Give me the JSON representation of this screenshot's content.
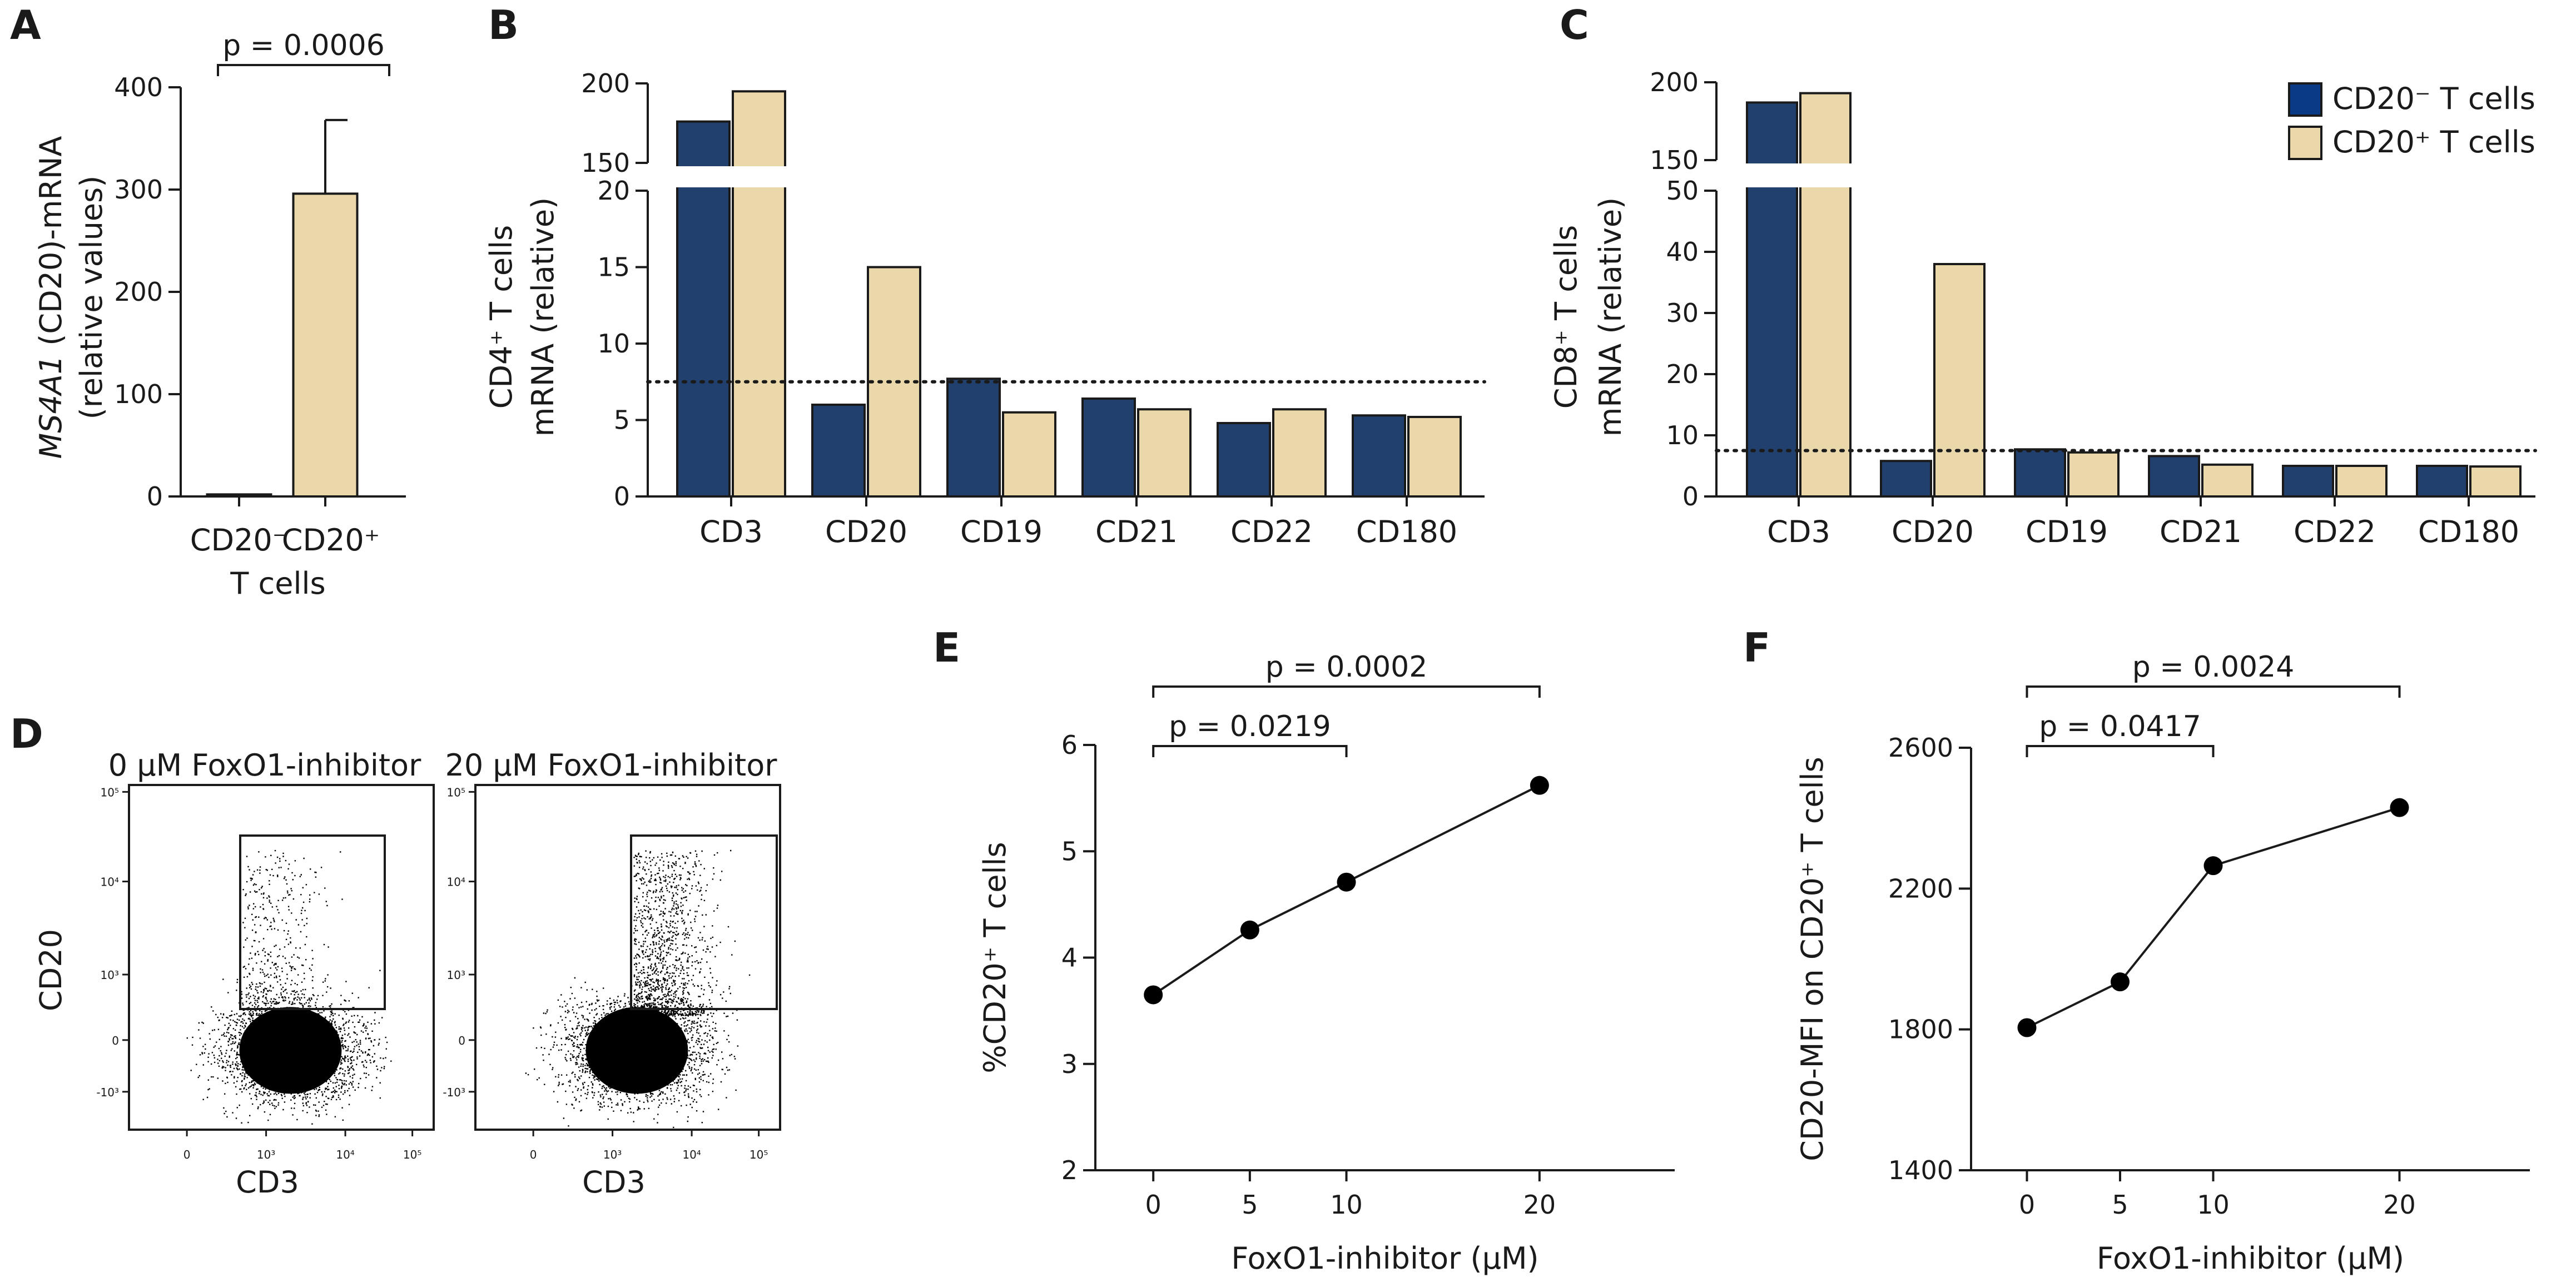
{
  "colors": {
    "cd20_neg": "#21406e",
    "cd20_pos": "#ead8ab",
    "legend_neg": "#0a3a86",
    "axis": "#1a1a1a",
    "dot": "#000000"
  },
  "chart_data": [
    {
      "panel": "A",
      "type": "bar",
      "categories": [
        "CD20⁻",
        "CD20⁺"
      ],
      "values": [
        2,
        296
      ],
      "error_upper": [
        null,
        368
      ],
      "ylabel": "MS4A1 (CD20)-mRNA (relative values)",
      "ylabel_italic_part": "MS4A1",
      "ylabel_line1_rest": " (CD20)-mRNA",
      "ylabel_line2": "(relative values)",
      "xlabel": "T cells",
      "ylim": [
        0,
        400
      ],
      "yticks": [
        0,
        100,
        200,
        300,
        400
      ],
      "annotation": "p = 0.0006"
    },
    {
      "panel": "B",
      "type": "bar",
      "categories": [
        "CD3",
        "CD20",
        "CD19",
        "CD21",
        "CD22",
        "CD180"
      ],
      "series": [
        {
          "name": "CD20⁻ T cells",
          "values": [
            176,
            6,
            7.7,
            6.4,
            4.8,
            5.3
          ]
        },
        {
          "name": "CD20⁺ T cells",
          "values": [
            195,
            15,
            5.5,
            5.7,
            5.7,
            5.2
          ]
        }
      ],
      "ylabel_line1": "CD4⁺ T cells",
      "ylabel_line2": "mRNA (relative)",
      "ylim_lower": [
        0,
        20
      ],
      "yticks_lower": [
        0,
        5,
        10,
        15,
        20
      ],
      "ylim_upper": [
        150,
        200
      ],
      "yticks_upper": [
        150,
        200
      ],
      "reference_line": 7.5
    },
    {
      "panel": "C",
      "type": "bar",
      "categories": [
        "CD3",
        "CD20",
        "CD19",
        "CD21",
        "CD22",
        "CD180"
      ],
      "series": [
        {
          "name": "CD20⁻ T cells",
          "values": [
            187,
            5.8,
            7.7,
            6.6,
            5,
            5
          ]
        },
        {
          "name": "CD20⁺ T cells",
          "values": [
            193,
            38,
            7.2,
            5.2,
            5,
            4.9
          ]
        }
      ],
      "ylabel_line1": "CD8⁺ T cells",
      "ylabel_line2": "mRNA (relative)",
      "ylim_lower": [
        0,
        50
      ],
      "yticks_lower": [
        0,
        10,
        20,
        30,
        40,
        50
      ],
      "ylim_upper": [
        150,
        200
      ],
      "yticks_upper": [
        150,
        200
      ],
      "reference_line": 7.5,
      "legend": [
        "CD20⁻ T cells",
        "CD20⁺ T cells"
      ],
      "legend_position": "top-right"
    },
    {
      "panel": "D",
      "type": "scatter",
      "subplots": [
        {
          "title": "0 μM FoxO1-inhibitor",
          "xlabel": "CD3",
          "ylabel": "CD20"
        },
        {
          "title": "20 μM FoxO1-inhibitor",
          "xlabel": "CD3",
          "ylabel": ""
        }
      ],
      "xticks": [
        "0",
        "10³",
        "10⁴",
        "10⁵"
      ],
      "yticks": [
        "-10³",
        "0",
        "10³",
        "10⁴",
        "10⁵"
      ]
    },
    {
      "panel": "E",
      "type": "line",
      "x": [
        0,
        5,
        10,
        20
      ],
      "y": [
        3.65,
        4.26,
        4.71,
        5.62
      ],
      "xticks": [
        0,
        5,
        10,
        20
      ],
      "xlim": [
        -3,
        27
      ],
      "ylim": [
        2,
        6
      ],
      "yticks": [
        2,
        3,
        4,
        5,
        6
      ],
      "xlabel": "FoxO1-inhibitor (μM)",
      "ylabel": "%CD20⁺ T cells",
      "annotations": [
        {
          "text": "p = 0.0219",
          "x1": 0,
          "x2": 10
        },
        {
          "text": "p = 0.0002",
          "x1": 0,
          "x2": 20
        }
      ]
    },
    {
      "panel": "F",
      "type": "line",
      "x": [
        0,
        5,
        10,
        20
      ],
      "y": [
        1805,
        1935,
        2265,
        2430
      ],
      "xticks": [
        0,
        5,
        10,
        20
      ],
      "xlim": [
        -3,
        27
      ],
      "ylim": [
        1400,
        2600
      ],
      "yticks": [
        1400,
        1800,
        2200,
        2600
      ],
      "xlabel": "FoxO1-inhibitor (μM)",
      "ylabel": "CD20-MFI on CD20⁺ T cells",
      "annotations": [
        {
          "text": "p = 0.0417",
          "x1": 0,
          "x2": 10
        },
        {
          "text": "p = 0.0024",
          "x1": 0,
          "x2": 20
        }
      ]
    }
  ]
}
